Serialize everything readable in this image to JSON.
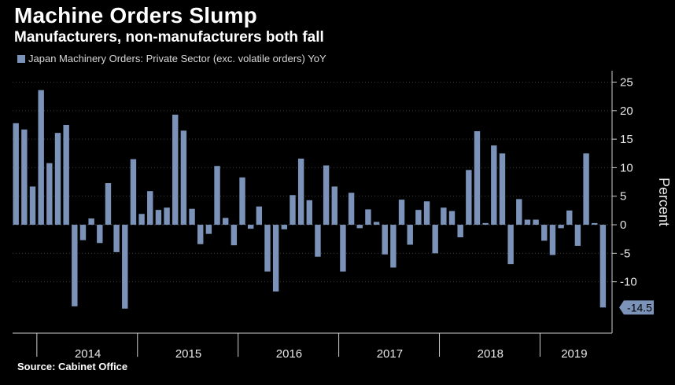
{
  "header": {
    "title": "Machine Orders Slump",
    "subtitle": "Manufacturers, non-manufacturers both fall"
  },
  "footer": {
    "source": "Source: Cabinet Office"
  },
  "colors": {
    "bar": "#7b93b8",
    "background": "#000000",
    "grid": "#3a3a3a",
    "text": "#e8e8e8"
  },
  "chart_data": {
    "type": "bar",
    "title": "Machine Orders Slump",
    "subtitle": "Manufacturers, non-manufacturers both fall",
    "ylabel": "Percent",
    "ylim": [
      -19,
      27
    ],
    "yticks": [
      25,
      20,
      15,
      10,
      5,
      0,
      -5,
      -10
    ],
    "xtick_labels": [
      "2014",
      "2015",
      "2016",
      "2017",
      "2018",
      "2019"
    ],
    "start": "2013-10",
    "grid": true,
    "legend_position": "top-left",
    "last_value_label": "-14.5",
    "series": [
      {
        "name": "Japan Machinery Orders: Private Sector (exc. volatile orders) YoY",
        "values": [
          17.8,
          16.7,
          6.7,
          23.6,
          10.8,
          16.1,
          17.5,
          -14.3,
          -2.7,
          1.1,
          -3.2,
          7.3,
          -4.8,
          -14.7,
          11.5,
          1.9,
          5.9,
          2.6,
          3.0,
          19.3,
          16.5,
          2.8,
          -3.4,
          -1.6,
          10.3,
          1.2,
          -3.6,
          8.3,
          -0.7,
          3.2,
          -8.2,
          -11.7,
          -0.8,
          5.2,
          11.6,
          4.3,
          -5.6,
          10.4,
          6.7,
          -8.2,
          5.6,
          -0.6,
          2.7,
          0.5,
          -5.2,
          -7.5,
          4.4,
          -3.5,
          2.6,
          4.1,
          -5.0,
          3.0,
          2.4,
          -2.2,
          9.6,
          16.4,
          0.3,
          13.9,
          12.5,
          -6.9,
          4.5,
          0.9,
          0.9,
          -2.8,
          -5.3,
          -0.6,
          2.5,
          -3.7,
          12.5,
          0.3,
          -14.5
        ]
      }
    ]
  }
}
